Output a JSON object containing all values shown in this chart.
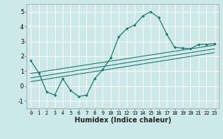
{
  "xlabel": "Humidex (Indice chaleur)",
  "ylabel": "",
  "background_color": "#cce8e8",
  "grid_color": "#ffffff",
  "line_color": "#1a7a6e",
  "xlim": [
    -0.5,
    23.5
  ],
  "ylim": [
    -1.5,
    5.5
  ],
  "yticks": [
    -1,
    0,
    1,
    2,
    3,
    4,
    5
  ],
  "xticks": [
    0,
    1,
    2,
    3,
    4,
    5,
    6,
    7,
    8,
    9,
    10,
    11,
    12,
    13,
    14,
    15,
    16,
    17,
    18,
    19,
    20,
    21,
    22,
    23
  ],
  "curve1_x": [
    0,
    1,
    2,
    3,
    4,
    5,
    6,
    7,
    8,
    9,
    10,
    11,
    12,
    13,
    14,
    15,
    16,
    17,
    18,
    19,
    20,
    21,
    22,
    23
  ],
  "curve1_y": [
    1.7,
    0.9,
    -0.4,
    -0.6,
    0.5,
    -0.3,
    -0.7,
    -0.6,
    0.5,
    1.1,
    1.9,
    3.3,
    3.85,
    4.1,
    4.7,
    5.0,
    4.6,
    3.5,
    2.6,
    2.55,
    2.5,
    2.8,
    2.8,
    2.85
  ],
  "line1_x": [
    0,
    23
  ],
  "line1_y": [
    0.85,
    2.75
  ],
  "line2_x": [
    0,
    23
  ],
  "line2_y": [
    0.55,
    2.5
  ],
  "line3_x": [
    0,
    23
  ],
  "line3_y": [
    0.3,
    2.25
  ],
  "xlabel_fontsize": 7,
  "xlabel_fontweight": "bold",
  "tick_fontsize": 5,
  "ytick_fontsize": 6
}
